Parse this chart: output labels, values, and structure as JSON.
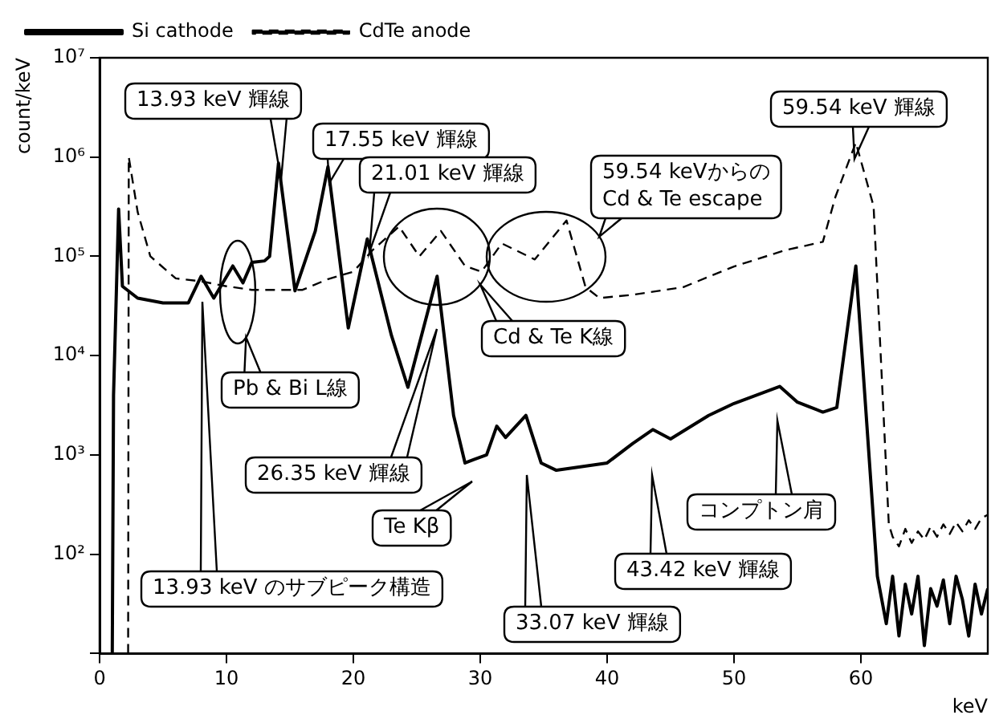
{
  "chart_data": {
    "type": "line",
    "xlabel": "keV",
    "ylabel": "count/keV",
    "log": true,
    "grid": false,
    "legend": "top left",
    "marker": "none",
    "xlim": [
      0,
      70
    ],
    "xticks": [
      0,
      10,
      20,
      30,
      40,
      50,
      60
    ],
    "ylim": [
      10,
      10000000
    ],
    "yticks": [
      {
        "value": 10,
        "label": null
      },
      {
        "value": 100,
        "label": "10²"
      },
      {
        "value": 1000,
        "label": "10³"
      },
      {
        "value": 10000,
        "label": "10⁴"
      },
      {
        "value": 100000,
        "label": "10⁵"
      },
      {
        "value": 1000000,
        "label": "10⁶"
      },
      {
        "value": 10000000,
        "label": "10⁷"
      }
    ],
    "series": [
      {
        "name": "Si cathode",
        "color": "#000000",
        "line_style": "solid",
        "x": [
          1.0,
          1.1,
          1.5,
          1.8,
          3,
          5,
          7,
          8,
          9,
          10.5,
          11.3,
          12,
          13,
          13.4,
          14.1,
          15.4,
          17.0,
          18.0,
          19.6,
          21.1,
          23,
          24.3,
          26.6,
          27.9,
          28.8,
          29.5,
          30.5,
          31.3,
          32,
          33.6,
          34.8,
          36,
          40,
          42,
          43.6,
          45,
          48,
          50,
          53.6,
          55,
          57,
          58.1,
          59.6,
          61.3,
          62,
          62.5,
          63,
          63.5,
          64,
          64.5,
          65,
          65.5,
          66,
          66.5,
          67,
          67.5,
          68,
          68.5,
          69,
          69.5,
          70
        ],
        "values": [
          10,
          4000,
          300000,
          50000,
          38000,
          34000,
          34000,
          63000,
          38000,
          80000,
          54000,
          87000,
          90000,
          100000,
          870000,
          45000,
          180000,
          800000,
          19000,
          150000,
          16000,
          4800,
          63000,
          2500,
          830,
          900,
          1000,
          1950,
          1500,
          2500,
          830,
          700,
          830,
          1300,
          1800,
          1450,
          2500,
          3300,
          4900,
          3400,
          2700,
          3000,
          80000,
          60,
          20,
          60,
          15,
          50,
          25,
          60,
          12,
          45,
          30,
          55,
          20,
          60,
          35,
          15,
          50,
          25,
          45
        ]
      },
      {
        "name": "CdTe anode",
        "color": "#000000",
        "line_style": "dashed",
        "x": [
          2.25,
          2.3,
          3,
          4,
          6,
          8,
          10,
          12,
          14,
          16,
          18,
          20,
          21.5,
          23.6,
          25.2,
          26.9,
          28.8,
          30.1,
          31.7,
          34.3,
          36.8,
          38.3,
          39.4,
          42,
          46,
          50,
          54,
          57,
          58,
          59.6,
          61,
          62.2,
          62.5,
          63,
          63.5,
          64,
          64.5,
          65,
          65.5,
          66,
          66.5,
          67,
          67.5,
          68,
          68.5,
          69,
          69.5,
          70
        ],
        "values": [
          10,
          1000000,
          280000,
          100000,
          60000,
          56000,
          50000,
          46000,
          46000,
          46000,
          59000,
          70000,
          115000,
          200000,
          100000,
          180000,
          80000,
          70000,
          135000,
          93000,
          230000,
          49000,
          38000,
          41000,
          49000,
          79000,
          115000,
          140000,
          400000,
          1400000,
          320000,
          200,
          150,
          120,
          180,
          130,
          170,
          140,
          190,
          150,
          200,
          160,
          210,
          170,
          220,
          180,
          230,
          250
        ]
      }
    ],
    "annotations": [
      "13.93 keV 輝線",
      "17.55 keV 輝線",
      "21.01 keV 輝線",
      "59.54 keVからの\nCd & Te escape",
      "59.54 keV 輝線",
      "Cd & Te K線",
      "Pb & Bi L線",
      "26.35 keV 輝線",
      "Te Kβ",
      "13.93 keV のサブピーク構造",
      "33.07 keV 輝線",
      "43.42 keV 輝線",
      "コンプトン肩"
    ]
  }
}
